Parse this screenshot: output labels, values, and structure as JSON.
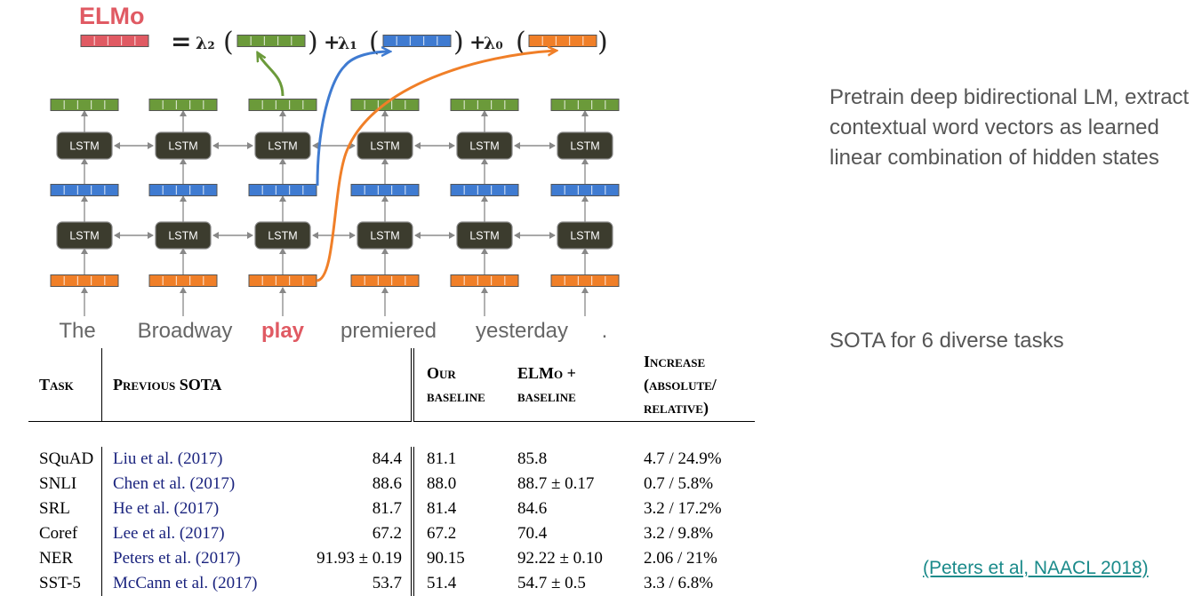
{
  "diagram": {
    "elmo_label": "ELMo",
    "equals": "=",
    "lambda2": "λ₂",
    "lambda1": "λ₁",
    "lambda0": "λ₀",
    "plus": "+",
    "lstm_label": "LSTM",
    "words": [
      "The",
      "Broadway",
      "play",
      "premiered",
      "yesterday",
      "."
    ],
    "highlight_word_index": 2,
    "colors": {
      "elmo_red": "#e05a63",
      "green": "#6b9a3a",
      "blue": "#3f7bd1",
      "orange": "#f07f28",
      "lstm": "#3c3c2e"
    }
  },
  "description": "Pretrain deep bidirectional LM, extract contextual word vectors as learned linear combination of hidden states",
  "sota_note": "SOTA for 6 diverse tasks",
  "citation": "(Peters et al, NAACL 2018)",
  "table": {
    "headers": {
      "task": "Task",
      "previous_sota": "Previous SOTA",
      "our_baseline": "Our baseline",
      "elmo_baseline": "ELMo + baseline",
      "increase": "Increase (absolute/ relative)"
    },
    "rows": [
      {
        "task": "SQuAD",
        "cite": "Liu et al. (2017)",
        "prev": "84.4",
        "ours": "81.1",
        "elmo": "85.8",
        "increase": "4.7 / 24.9%"
      },
      {
        "task": "SNLI",
        "cite": "Chen et al. (2017)",
        "prev": "88.6",
        "ours": "88.0",
        "elmo": "88.7 ± 0.17",
        "increase": "0.7 / 5.8%"
      },
      {
        "task": "SRL",
        "cite": "He et al. (2017)",
        "prev": "81.7",
        "ours": "81.4",
        "elmo": "84.6",
        "increase": "3.2 / 17.2%"
      },
      {
        "task": "Coref",
        "cite": "Lee et al. (2017)",
        "prev": "67.2",
        "ours": "67.2",
        "elmo": "70.4",
        "increase": "3.2 / 9.8%"
      },
      {
        "task": "NER",
        "cite": "Peters et al. (2017)",
        "prev": "91.93 ± 0.19",
        "ours": "90.15",
        "elmo": "92.22 ± 0.10",
        "increase": "2.06 / 21%"
      },
      {
        "task": "SST-5",
        "cite": "McCann et al. (2017)",
        "prev": "53.7",
        "ours": "51.4",
        "elmo": "54.7 ± 0.5",
        "increase": "3.3 / 6.8%"
      }
    ]
  }
}
